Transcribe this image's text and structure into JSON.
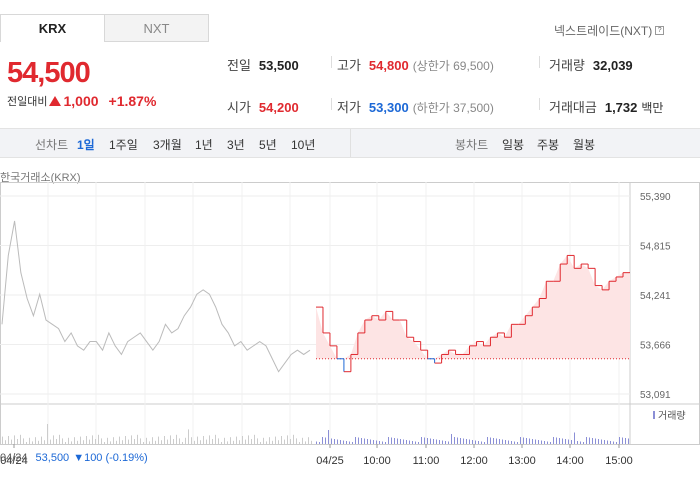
{
  "tabs": {
    "krx": "KRX",
    "nxt": "NXT"
  },
  "nxt_link": "넥스트레이드(NXT)",
  "price": "54,500",
  "change_label": "전일대비",
  "change_amount": "1,000",
  "change_pct": "+1.87%",
  "stats": {
    "prev_close_label": "전일",
    "prev_close": "53,500",
    "high_label": "고가",
    "high": "54,800",
    "upper_limit": "(상한가 69,500)",
    "volume_label": "거래량",
    "volume": "32,039",
    "open_label": "시가",
    "open": "54,200",
    "low_label": "저가",
    "low": "53,300",
    "lower_limit": "(하한가 37,500)",
    "amount_label": "거래대금",
    "amount": "1,732",
    "amount_unit": "백만"
  },
  "toolbar": {
    "line_label": "선차트",
    "periods": [
      "1일",
      "1주일",
      "3개월",
      "1년",
      "3년",
      "5년",
      "10년"
    ],
    "candle_label": "봉차트",
    "candle_periods": [
      "일봉",
      "주봉",
      "월봉"
    ]
  },
  "source_label": "한국거래소(KRX)",
  "volume_legend": "거래량",
  "bottom_info": {
    "date": "04/24",
    "price": "53,500",
    "change": "▼100 (-0.19%)"
  },
  "colors": {
    "up": "#e0292f",
    "down": "#1c68d6",
    "prev": "#bbbbbb"
  },
  "chart_data": {
    "type": "line",
    "ylim": [
      53091,
      55390
    ],
    "y_ticks": [
      55390,
      54815,
      54241,
      53666,
      53091
    ],
    "x_ticks": [
      "04/24",
      "04/25",
      "10:00",
      "11:00",
      "12:00",
      "13:00",
      "14:00",
      "15:00"
    ],
    "previous_day": [
      53900,
      54700,
      55100,
      54500,
      54200,
      54000,
      54250,
      53950,
      53900,
      53850,
      53700,
      53800,
      53650,
      53600,
      53700,
      53700,
      53600,
      53800,
      53650,
      53550,
      53700,
      53750,
      53800,
      53700,
      53600,
      53700,
      53900,
      53800,
      53850,
      54000,
      54100,
      54250,
      54300,
      54250,
      54100,
      53900,
      53800,
      53650,
      53700,
      53600,
      53650,
      53700,
      53650,
      53500,
      53350,
      53450,
      53550,
      53600,
      53550,
      53600
    ],
    "today_base": 53500,
    "today": [
      54100,
      53800,
      53650,
      53500,
      53350,
      53550,
      53800,
      53950,
      54000,
      53950,
      54050,
      53950,
      53950,
      53750,
      53700,
      53600,
      53500,
      53450,
      53550,
      53600,
      53550,
      53550,
      53650,
      53700,
      53650,
      53750,
      53800,
      53750,
      53900,
      53900,
      54000,
      54100,
      54200,
      54400,
      54400,
      54600,
      54700,
      54550,
      54600,
      54550,
      54350,
      54300,
      54400,
      54450,
      54500,
      54500
    ]
  }
}
